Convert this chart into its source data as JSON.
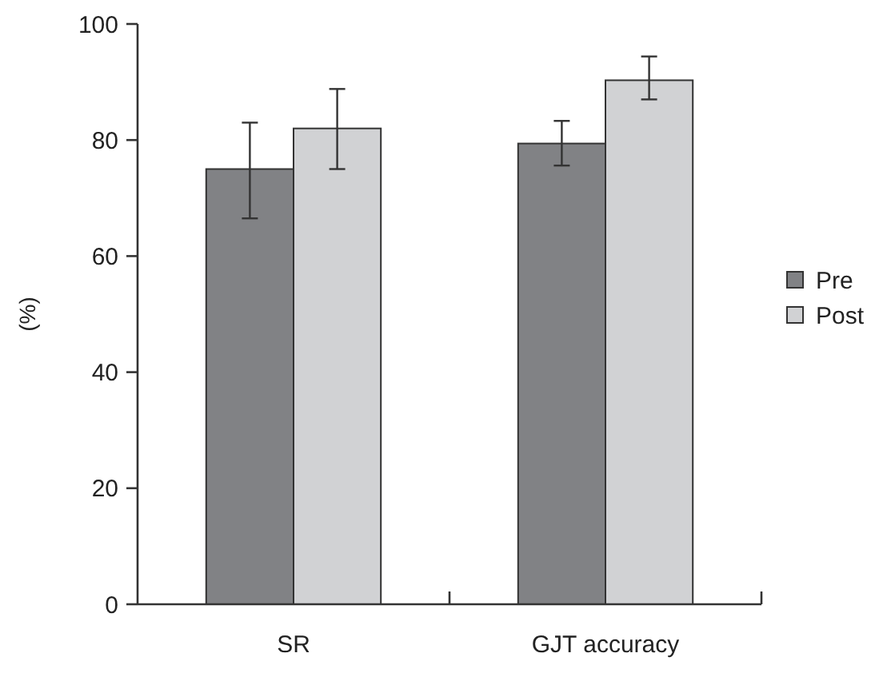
{
  "chart_data": {
    "type": "bar",
    "ylabel": "(%)",
    "categories": [
      "SR",
      "GJT accuracy"
    ],
    "series": [
      {
        "name": "Pre",
        "color": "#818285",
        "values": [
          75,
          79.4
        ],
        "errors": [
          [
            66.5,
            83
          ],
          [
            75.6,
            83.3
          ]
        ]
      },
      {
        "name": "Post",
        "color": "#d1d2d4",
        "values": [
          82,
          90.3
        ],
        "errors": [
          [
            75,
            88.8
          ],
          [
            87,
            94.4
          ]
        ]
      }
    ],
    "ylim": [
      0,
      100
    ],
    "yticks": [
      0,
      20,
      40,
      60,
      80,
      100
    ],
    "grid": false,
    "legend": "right"
  }
}
